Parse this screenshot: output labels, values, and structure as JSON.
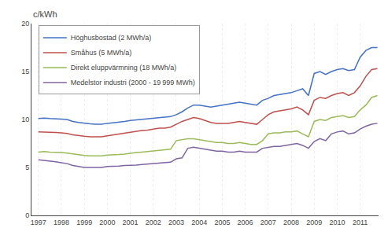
{
  "chart_data": {
    "type": "line",
    "title": "c/kWh",
    "x": [
      1997.0,
      1997.25,
      1997.5,
      1997.75,
      1998.0,
      1998.25,
      1998.5,
      1998.75,
      1999.0,
      1999.25,
      1999.5,
      1999.75,
      2000.0,
      2000.25,
      2000.5,
      2000.75,
      2001.0,
      2001.25,
      2001.5,
      2001.75,
      2002.0,
      2002.25,
      2002.5,
      2002.75,
      2003.0,
      2003.25,
      2003.5,
      2003.75,
      2004.0,
      2004.25,
      2004.5,
      2004.75,
      2005.0,
      2005.25,
      2005.5,
      2005.75,
      2006.0,
      2006.25,
      2006.5,
      2006.75,
      2007.0,
      2007.25,
      2007.5,
      2007.75,
      2008.0,
      2008.25,
      2008.5,
      2008.75,
      2009.0,
      2009.25,
      2009.5,
      2009.75,
      2010.0,
      2010.25,
      2010.5,
      2010.75,
      2011.0,
      2011.25,
      2011.5,
      2011.75
    ],
    "series": [
      {
        "name": "Höghusbostad (2 MWh/a)",
        "color": "#4472C4",
        "values": [
          10.1,
          10.15,
          10.1,
          10.1,
          10.05,
          10.0,
          9.8,
          9.7,
          9.6,
          9.55,
          9.5,
          9.5,
          9.6,
          9.65,
          9.7,
          9.8,
          9.9,
          9.95,
          10.0,
          10.05,
          10.1,
          10.15,
          10.2,
          10.3,
          10.5,
          10.8,
          11.2,
          11.5,
          11.5,
          11.4,
          11.3,
          11.4,
          11.5,
          11.6,
          11.7,
          11.8,
          11.7,
          11.6,
          11.5,
          12.0,
          12.2,
          12.5,
          12.6,
          12.7,
          12.8,
          13.0,
          13.2,
          12.5,
          14.8,
          15.0,
          14.7,
          15.0,
          15.2,
          15.3,
          15.1,
          15.2,
          16.5,
          17.2,
          17.5,
          17.5
        ]
      },
      {
        "name": "Småhus (5 MWh/a)",
        "color": "#C0504D",
        "values": [
          8.7,
          8.7,
          8.65,
          8.65,
          8.6,
          8.55,
          8.4,
          8.3,
          8.25,
          8.2,
          8.2,
          8.2,
          8.3,
          8.4,
          8.5,
          8.6,
          8.7,
          8.8,
          8.85,
          8.9,
          9.0,
          9.1,
          9.1,
          9.2,
          9.5,
          9.8,
          10.0,
          10.2,
          10.1,
          9.9,
          9.7,
          9.6,
          9.6,
          9.6,
          9.7,
          9.8,
          9.7,
          9.6,
          9.5,
          10.0,
          10.5,
          10.8,
          10.9,
          11.0,
          11.1,
          11.3,
          11.0,
          10.5,
          12.0,
          12.3,
          12.2,
          12.5,
          12.7,
          12.8,
          12.5,
          12.8,
          13.5,
          14.5,
          15.2,
          15.3
        ]
      },
      {
        "name": "Direkt eluppvärmning (18 MWh/a)",
        "color": "#9BBB59",
        "values": [
          6.6,
          6.65,
          6.6,
          6.6,
          6.55,
          6.5,
          6.4,
          6.3,
          6.25,
          6.2,
          6.2,
          6.2,
          6.3,
          6.3,
          6.35,
          6.4,
          6.5,
          6.55,
          6.6,
          6.65,
          6.7,
          6.75,
          6.8,
          6.9,
          7.8,
          7.9,
          8.0,
          8.0,
          7.9,
          7.8,
          7.7,
          7.6,
          7.6,
          7.5,
          7.5,
          7.6,
          7.5,
          7.4,
          7.4,
          7.8,
          8.5,
          8.6,
          8.6,
          8.7,
          8.7,
          8.8,
          8.5,
          8.2,
          9.8,
          10.0,
          9.9,
          10.2,
          10.3,
          10.4,
          10.2,
          10.3,
          11.0,
          11.5,
          12.3,
          12.5
        ]
      },
      {
        "name": "Medelstor industri (2000 - 19 999 MWh)",
        "color": "#8064A2",
        "values": [
          5.8,
          5.75,
          5.7,
          5.6,
          5.5,
          5.4,
          5.2,
          5.1,
          5.0,
          5.0,
          5.0,
          5.0,
          5.1,
          5.1,
          5.15,
          5.2,
          5.2,
          5.25,
          5.3,
          5.35,
          5.4,
          5.45,
          5.5,
          5.55,
          5.9,
          6.0,
          7.0,
          7.1,
          7.0,
          6.9,
          6.8,
          6.7,
          6.7,
          6.6,
          6.6,
          6.7,
          6.6,
          6.6,
          6.6,
          7.0,
          7.1,
          7.2,
          7.2,
          7.3,
          7.4,
          7.5,
          7.3,
          7.0,
          7.7,
          8.0,
          7.8,
          8.5,
          8.7,
          8.8,
          8.5,
          8.6,
          9.0,
          9.3,
          9.5,
          9.6
        ]
      }
    ],
    "xlim": [
      1996.7,
      2011.8
    ],
    "xticks": [
      1997,
      1998,
      1999,
      2000,
      2001,
      2002,
      2003,
      2004,
      2005,
      2006,
      2007,
      2008,
      2009,
      2010,
      2011
    ],
    "ylim": [
      0,
      20
    ],
    "yticks": [
      0,
      5,
      10,
      15,
      20
    ],
    "grid": "x",
    "legend": "upper left"
  }
}
